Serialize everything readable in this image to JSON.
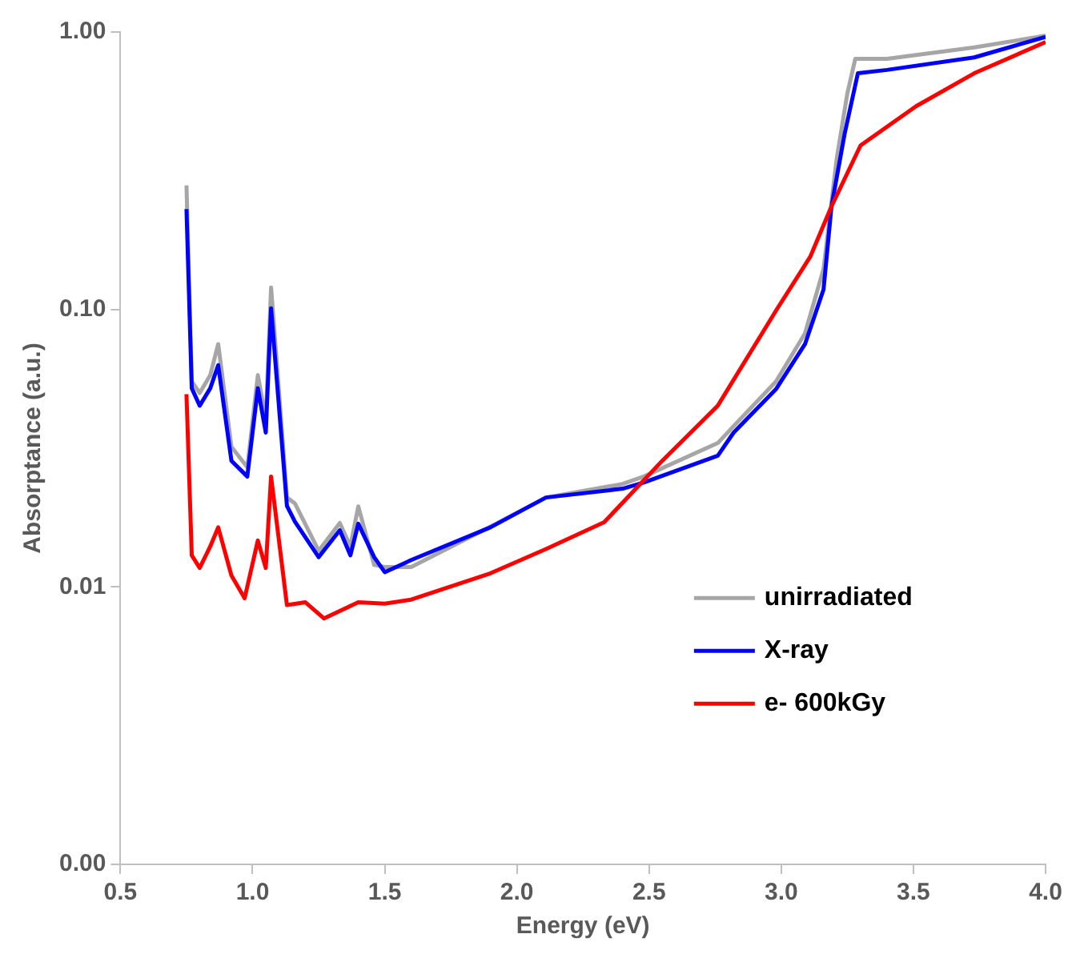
{
  "chart_data": {
    "type": "line",
    "xlabel": "Energy (eV)",
    "ylabel": "Absorptance (a.u.)",
    "log": "y",
    "grid": false,
    "legend": "right",
    "marker": "none",
    "line_style": "solid",
    "xlim": [
      0.5,
      4.0
    ],
    "xticks": [
      {
        "value": 0.5,
        "label": "0.5"
      },
      {
        "value": 1,
        "label": "1.0"
      },
      {
        "value": 1.5,
        "label": "1.5"
      },
      {
        "value": 2,
        "label": "2.0"
      },
      {
        "value": 2.5,
        "label": "2.5"
      },
      {
        "value": 3,
        "label": "3.0"
      },
      {
        "value": 3.5,
        "label": "3.5"
      },
      {
        "value": 4,
        "label": "4.0"
      }
    ],
    "ylim": [
      0.001,
      1
    ],
    "yticks": [
      {
        "value": 0.001,
        "label": "0.00"
      },
      0.01,
      {
        "value": 0.1,
        "label": "0.10"
      },
      {
        "value": 1,
        "label": "1.00"
      }
    ],
    "series": [
      {
        "name": "unirradiated",
        "color": "#a6a6a6",
        "x": [
          0.75,
          0.77,
          0.8,
          0.84,
          0.87,
          0.92,
          0.98,
          1.02,
          1.05,
          1.07,
          1.13,
          1.16,
          1.25,
          1.33,
          1.37,
          1.4,
          1.46,
          1.5,
          1.6,
          1.9,
          2.11,
          2.4,
          2.48,
          2.76,
          2.82,
          2.98,
          3.09,
          3.16,
          3.21,
          3.25,
          3.28,
          3.4,
          3.73,
          4.0
        ],
        "values": [
          0.28,
          0.055,
          0.05,
          0.058,
          0.075,
          0.032,
          0.027,
          0.058,
          0.04,
          0.12,
          0.021,
          0.02,
          0.0135,
          0.017,
          0.014,
          0.0195,
          0.012,
          0.0118,
          0.0118,
          0.0165,
          0.021,
          0.0235,
          0.025,
          0.033,
          0.038,
          0.055,
          0.082,
          0.14,
          0.35,
          0.6,
          0.8,
          0.8,
          0.88,
          0.97
        ]
      },
      {
        "name": "X-ray",
        "color": "#0000ff",
        "x": [
          0.75,
          0.77,
          0.8,
          0.84,
          0.87,
          0.92,
          0.98,
          1.02,
          1.05,
          1.07,
          1.13,
          1.16,
          1.25,
          1.33,
          1.37,
          1.4,
          1.46,
          1.5,
          1.6,
          1.9,
          2.11,
          2.4,
          2.48,
          2.76,
          2.82,
          2.98,
          3.09,
          3.16,
          3.19,
          3.24,
          3.29,
          3.4,
          3.73,
          4.0
        ],
        "values": [
          0.23,
          0.052,
          0.045,
          0.052,
          0.063,
          0.0285,
          0.025,
          0.052,
          0.036,
          0.101,
          0.0196,
          0.0172,
          0.0128,
          0.016,
          0.013,
          0.0169,
          0.0128,
          0.0113,
          0.0125,
          0.0164,
          0.021,
          0.0226,
          0.0238,
          0.0297,
          0.036,
          0.0516,
          0.075,
          0.118,
          0.235,
          0.43,
          0.71,
          0.73,
          0.81,
          0.96
        ]
      },
      {
        "name": "e- 600kGy",
        "color": "#ff0000",
        "x": [
          0.75,
          0.77,
          0.8,
          0.84,
          0.87,
          0.92,
          0.97,
          1.02,
          1.05,
          1.07,
          1.13,
          1.2,
          1.27,
          1.4,
          1.5,
          1.6,
          1.9,
          2.11,
          2.33,
          2.55,
          2.76,
          2.98,
          3.11,
          3.19,
          3.3,
          3.51,
          3.73,
          4.0
        ],
        "values": [
          0.0495,
          0.013,
          0.0117,
          0.014,
          0.0164,
          0.011,
          0.0091,
          0.0147,
          0.0117,
          0.025,
          0.0086,
          0.0088,
          0.0077,
          0.0088,
          0.0087,
          0.009,
          0.0112,
          0.0137,
          0.0171,
          0.0285,
          0.045,
          0.099,
          0.155,
          0.235,
          0.39,
          0.54,
          0.71,
          0.92
        ]
      }
    ]
  }
}
